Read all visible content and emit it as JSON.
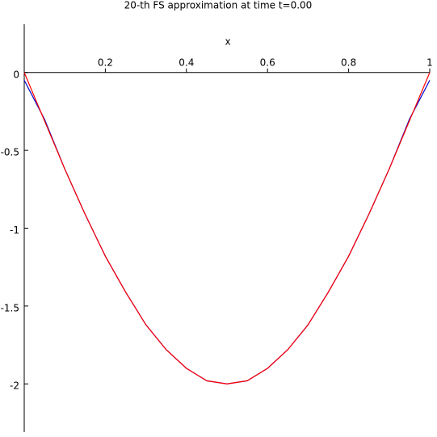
{
  "chart_data": {
    "type": "line",
    "title": "20-th FS approximation at time t=0.00",
    "x_label": "x",
    "x": [
      0,
      0.05,
      0.1,
      0.15,
      0.2,
      0.25,
      0.3,
      0.35,
      0.4,
      0.45,
      0.5,
      0.55,
      0.6,
      0.65,
      0.7,
      0.75,
      0.8,
      0.85,
      0.9,
      0.95,
      1
    ],
    "series": [
      {
        "color": "#0000cc",
        "values": [
          -0.05,
          -0.3,
          -0.62,
          -0.91,
          -1.18,
          -1.41,
          -1.62,
          -1.78,
          -1.9,
          -1.98,
          -2,
          -1.98,
          -1.9,
          -1.78,
          -1.62,
          -1.41,
          -1.18,
          -0.91,
          -0.62,
          -0.3,
          -0.05
        ]
      },
      {
        "color": "#ff0000",
        "values": [
          0,
          -0.31,
          -0.62,
          -0.91,
          -1.18,
          -1.41,
          -1.62,
          -1.78,
          -1.9,
          -1.98,
          -2,
          -1.98,
          -1.9,
          -1.78,
          -1.62,
          -1.41,
          -1.18,
          -0.91,
          -0.62,
          -0.31,
          0
        ]
      }
    ],
    "xlim": [
      0,
      1
    ],
    "xticks": [
      0.2,
      0.4,
      0.6,
      0.8,
      1
    ],
    "ylim": [
      -2.31,
      0.31
    ],
    "yticks": [
      0,
      -0.5,
      -1,
      -1.5,
      -2
    ]
  }
}
